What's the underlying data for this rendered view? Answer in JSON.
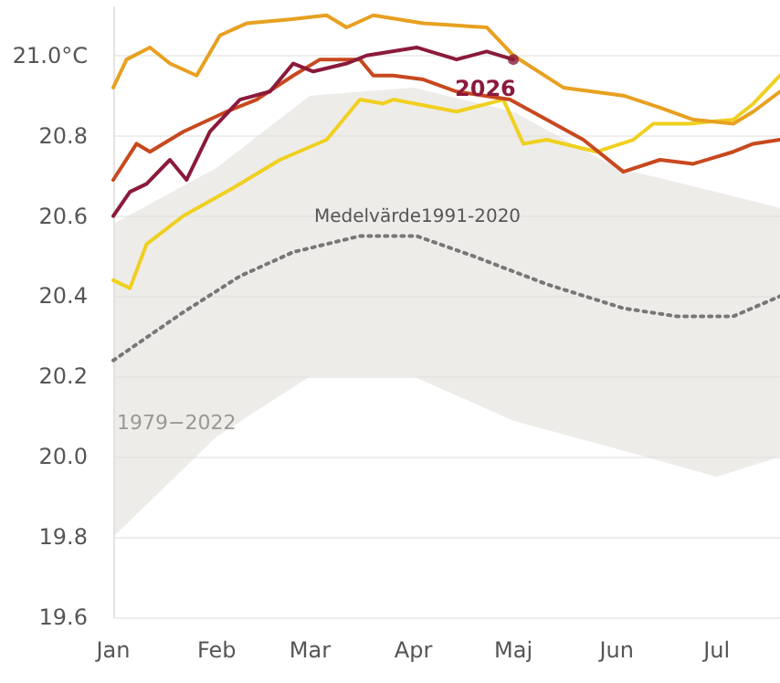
{
  "chart_data": {
    "type": "line",
    "xlim": [
      "--01-01",
      "--07-20"
    ],
    "xticks": [
      {
        "value": "--01-01",
        "label": "Jan"
      },
      {
        "value": "--02-01",
        "label": "Feb"
      },
      {
        "value": "--03-01",
        "label": "Mar"
      },
      {
        "value": "--04-01",
        "label": "Apr"
      },
      {
        "value": "--05-01",
        "label": "Maj"
      },
      {
        "value": "--06-01",
        "label": "Jun"
      },
      {
        "value": "--07-01",
        "label": "Jul"
      }
    ],
    "ylim": [
      19.6,
      21.12
    ],
    "yticks": [
      {
        "value": 19.6,
        "label": "19.6"
      },
      {
        "value": 19.8,
        "label": "19.8"
      },
      {
        "value": 20.0,
        "label": "20.0"
      },
      {
        "value": 20.2,
        "label": "20.2"
      },
      {
        "value": 20.4,
        "label": "20.4"
      },
      {
        "value": 20.6,
        "label": "20.6"
      },
      {
        "value": 20.8,
        "label": "20.8"
      },
      {
        "value": 21.0,
        "label": "21.0°C"
      }
    ],
    "grid": "y",
    "legend": false,
    "marker": "none",
    "series": [
      {
        "type": "area",
        "color": "#e2dfdb",
        "x": [
          "--01-01",
          "--02-01",
          "--03-01",
          "--04-01",
          "--05-01",
          "--06-01",
          "--07-01",
          "--07-20"
        ],
        "values": [
          null,
          null,
          null,
          null,
          null,
          null,
          null,
          null
        ],
        "lower": [
          19.8,
          20.05,
          20.2,
          20.2,
          20.09,
          20.02,
          19.95,
          20.0
        ],
        "upper": [
          20.58,
          20.72,
          20.9,
          20.92,
          20.86,
          20.72,
          20.66,
          20.62
        ]
      },
      {
        "color": "#777777",
        "line_style": "dotted",
        "x": [
          "--01-01",
          "--01-22",
          "--02-08",
          "--02-24",
          "--03-16",
          "--04-02",
          "--04-19",
          "--05-11",
          "--06-03",
          "--06-19",
          "--07-06",
          "--07-20"
        ],
        "values": [
          20.24,
          20.36,
          20.45,
          20.51,
          20.55,
          20.55,
          20.5,
          20.43,
          20.37,
          20.35,
          20.35,
          20.4
        ]
      },
      {
        "color": "#f0d020",
        "x": [
          "--01-01",
          "--01-06",
          "--01-11",
          "--01-22",
          "--02-06",
          "--02-20",
          "--03-06",
          "--03-16",
          "--03-23",
          "--03-26",
          "--04-14",
          "--04-28",
          "--05-04",
          "--05-11",
          "--05-26",
          "--06-06",
          "--06-12",
          "--06-23",
          "--07-06",
          "--07-12",
          "--07-20"
        ],
        "values": [
          20.44,
          20.42,
          20.53,
          20.6,
          20.67,
          20.74,
          20.79,
          20.89,
          20.88,
          20.89,
          20.86,
          20.89,
          20.78,
          20.79,
          20.76,
          20.79,
          20.83,
          20.83,
          20.84,
          20.88,
          20.95
        ]
      },
      {
        "color": "#c8481e",
        "x": [
          "--01-01",
          "--01-08",
          "--01-12",
          "--01-22",
          "--02-04",
          "--02-13",
          "--02-24",
          "--03-04",
          "--03-16",
          "--03-20",
          "--03-26",
          "--04-04",
          "--04-14",
          "--04-30",
          "--05-11",
          "--05-22",
          "--06-03",
          "--06-14",
          "--06-24",
          "--07-06",
          "--07-12",
          "--07-20"
        ],
        "values": [
          20.69,
          20.78,
          20.76,
          20.81,
          20.86,
          20.89,
          20.95,
          20.99,
          20.99,
          20.95,
          20.95,
          20.94,
          20.91,
          20.89,
          20.84,
          20.79,
          20.71,
          20.74,
          20.73,
          20.76,
          20.78,
          20.79
        ]
      },
      {
        "color": "#e8a020",
        "x": [
          "--01-01",
          "--01-05",
          "--01-12",
          "--01-18",
          "--01-26",
          "--02-02",
          "--02-10",
          "--02-23",
          "--03-06",
          "--03-12",
          "--03-20",
          "--04-04",
          "--04-23",
          "--05-01",
          "--05-16",
          "--06-03",
          "--06-14",
          "--06-24",
          "--07-06",
          "--07-12",
          "--07-20"
        ],
        "values": [
          20.92,
          20.99,
          21.02,
          20.98,
          20.95,
          21.05,
          21.08,
          21.09,
          21.1,
          21.07,
          21.1,
          21.08,
          21.07,
          21.0,
          20.92,
          20.9,
          20.87,
          20.84,
          20.83,
          20.86,
          20.91
        ]
      },
      {
        "name": "2026",
        "color": "#8b1a3a",
        "x": [
          "--01-01",
          "--01-06",
          "--01-11",
          "--01-18",
          "--01-23",
          "--01-30",
          "--02-08",
          "--02-17",
          "--02-24",
          "--03-02",
          "--03-12",
          "--03-18",
          "--04-02",
          "--04-14",
          "--04-23",
          "--05-01"
        ],
        "values": [
          20.6,
          20.66,
          20.68,
          20.74,
          20.69,
          20.81,
          20.89,
          20.91,
          20.98,
          20.96,
          20.98,
          21.0,
          21.02,
          20.99,
          21.01,
          20.99
        ]
      }
    ],
    "annotations": [
      "Medelvärde1991-2020",
      "1979−2022"
    ]
  }
}
